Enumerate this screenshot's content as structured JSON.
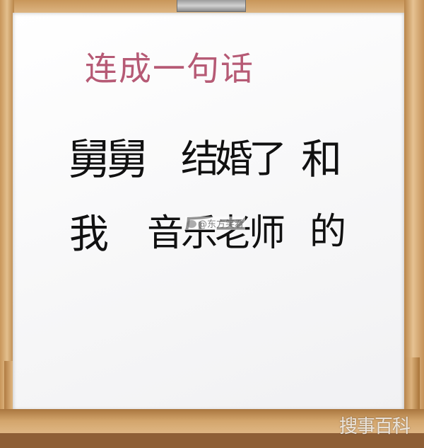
{
  "board": {
    "title": "连成一句话",
    "row1": [
      "舅舅",
      "结婚了",
      "和"
    ],
    "row2": [
      "我",
      "音乐老师",
      "的"
    ]
  },
  "watermarks": {
    "weibo": "@东方笑看",
    "corner": "搜事百科"
  },
  "colors": {
    "title": "#b65a75",
    "ink": "#111111",
    "frame": "#d9b27f"
  }
}
